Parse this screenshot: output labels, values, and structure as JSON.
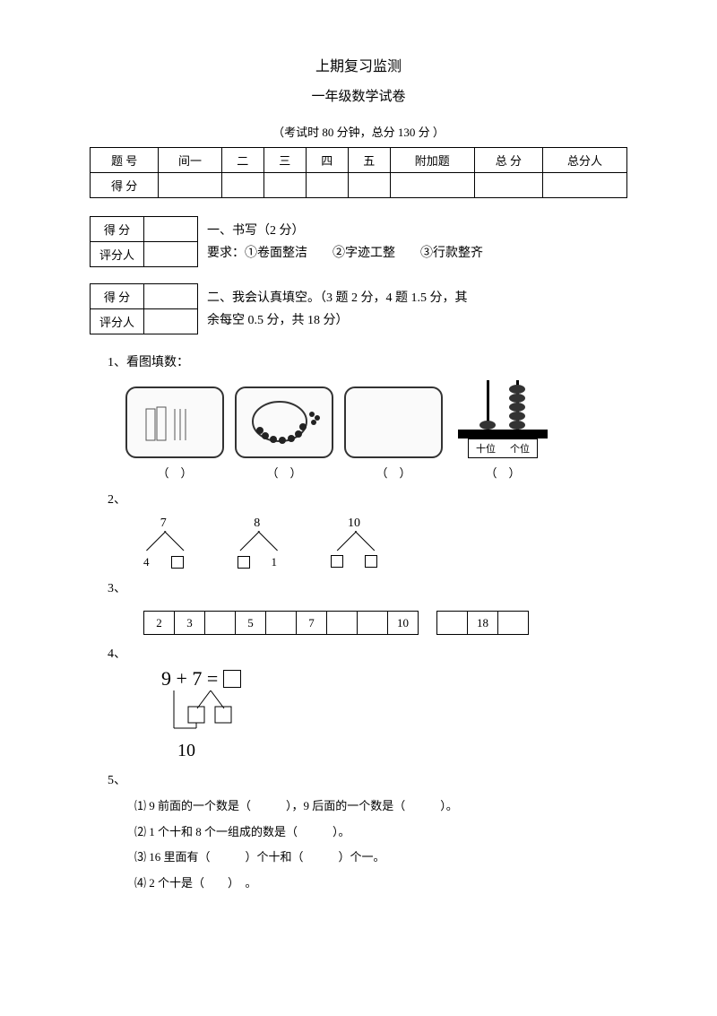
{
  "header": {
    "title": "上期复习监测",
    "subtitle": "一年级数学试卷",
    "exam_info_prefix": "（考试时",
    "exam_time": "80",
    "exam_time_unit": "分钟，总分",
    "total_score": "130",
    "exam_info_suffix": "分 ）"
  },
  "score_table": {
    "h1": "题 号",
    "h2": "间一",
    "h3": "二",
    "h4": "三",
    "h5": "四",
    "h6": "五",
    "h7": "附加题",
    "h8": "总 分",
    "h9": "总分人",
    "r1": "得 分"
  },
  "mini1": {
    "r1": "得 分",
    "r2": "评分人"
  },
  "mini2": {
    "r1": "得 分",
    "r2": "评分人"
  },
  "section1": {
    "title": "一、书写（2 分）",
    "req": "要求：①卷面整洁　　②字迹工整　　③行款整齐"
  },
  "section2": {
    "title": "二、我会认真填空。（3 题 2 分，4 题 1.5 分，其",
    "title2": "余每空 0.5 分，共 18 分）"
  },
  "q1": {
    "label": "1、看图填数：",
    "abacus_l": "十位",
    "abacus_r": "个位",
    "p1": "（　）",
    "p2": "（　）",
    "p3": "（　）",
    "p4": "（　）"
  },
  "q2": {
    "label": "2、",
    "n1": "7",
    "n2": "8",
    "n3": "10",
    "b1": "4",
    "b2": "1"
  },
  "q3": {
    "label": "3、",
    "seq1": [
      "2",
      "3",
      "",
      "5",
      "",
      "7",
      "",
      "",
      "10"
    ],
    "seq2": [
      "",
      "18",
      ""
    ]
  },
  "q4": {
    "label": "4、",
    "eq": "9 + 7 =",
    "ten": "10"
  },
  "q5": {
    "label": "5、",
    "a": "⑴ 9 前面的一个数是（　　　），9 后面的一个数是（　　　）。",
    "b": "⑵ 1 个十和 8 个一组成的数是（　　　）。",
    "c": "⑶ 16 里面有（　　　）个十和（　　　）个一。",
    "d": "⑷ 2 个十是（　　）　。"
  }
}
